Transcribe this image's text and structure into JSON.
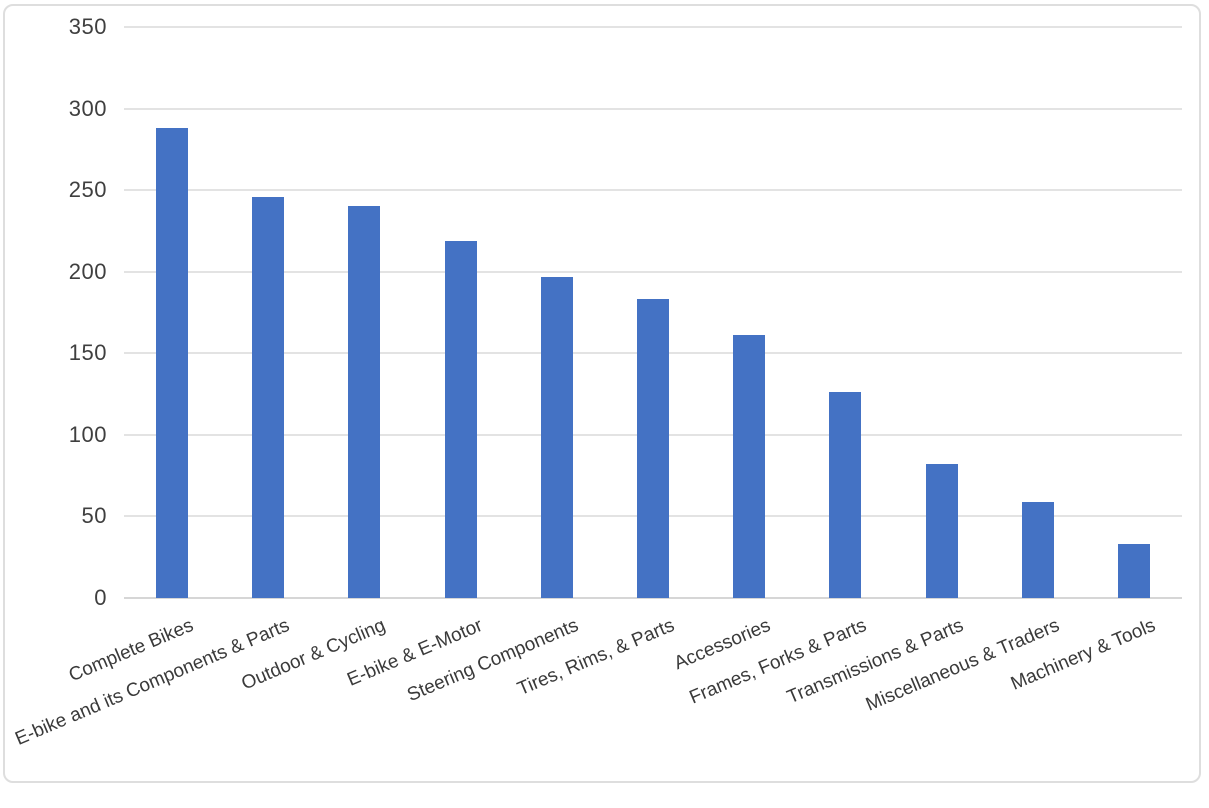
{
  "chart_data": {
    "type": "bar",
    "title": "",
    "xlabel": "",
    "ylabel": "",
    "categories": [
      "Complete Bikes",
      "E-bike and its Components & Parts",
      "Outdoor & Cycling",
      "E-bike & E-Motor",
      "Steering Components",
      "Tires, Rims, & Parts",
      "Accessories",
      "Frames, Forks & Parts",
      "Transmissions & Parts",
      "Miscellaneous & Traders",
      "Machinery & Tools"
    ],
    "values": [
      288,
      246,
      240,
      219,
      197,
      183,
      161,
      126,
      82,
      59,
      33
    ],
    "ylim": [
      0,
      350
    ],
    "ytick_step": 50,
    "ytick_labels": [
      "0",
      "50",
      "100",
      "150",
      "200",
      "250",
      "300",
      "350"
    ],
    "grid": true,
    "legend_position": "none",
    "x_label_rotation_deg": -23,
    "colors": {
      "bar": "#4472c4",
      "gridline": "#e3e3e3",
      "axis_line": "#d6d6d6",
      "tick_label": "#3f3f3f",
      "background": "#ffffff",
      "frame_border": "#dedede"
    }
  }
}
